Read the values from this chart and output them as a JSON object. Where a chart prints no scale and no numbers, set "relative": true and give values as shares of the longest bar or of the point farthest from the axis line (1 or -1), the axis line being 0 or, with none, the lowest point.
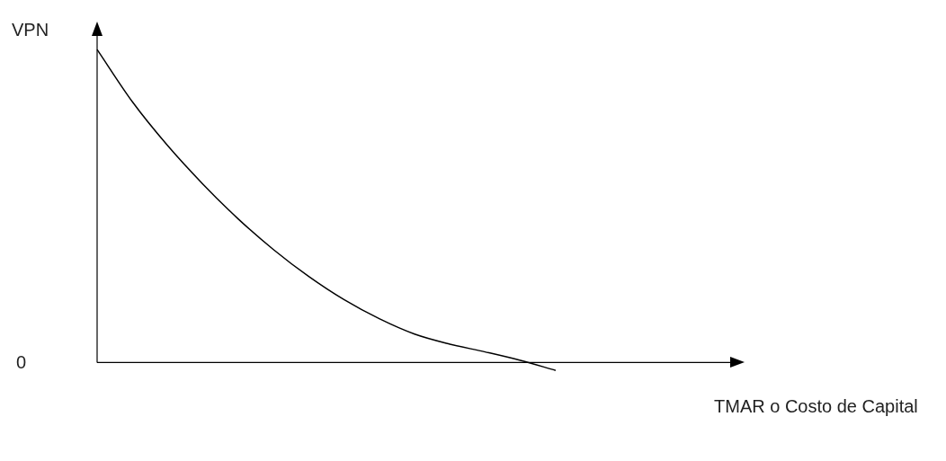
{
  "chart_data": {
    "type": "line",
    "relative": true,
    "ylabel": "VPN",
    "xlabel": "TMAR o Costo de Capital",
    "annotations": [
      "0"
    ],
    "categories": [
      null,
      null,
      null,
      null,
      null,
      null,
      null,
      null,
      null,
      null,
      null,
      null,
      null,
      null,
      null,
      null,
      null,
      null,
      null
    ],
    "series": [
      {
        "color": "#000000",
        "values": [
          1,
          0.833,
          0.693,
          0.57,
          0.459,
          0.361,
          0.275,
          0.201,
          0.14,
          0.091,
          0.059,
          0.034,
          0.007,
          -0.025,
          null,
          null,
          null,
          null,
          null
        ]
      }
    ],
    "legend": false,
    "marker": "none",
    "line_style": "solid"
  }
}
